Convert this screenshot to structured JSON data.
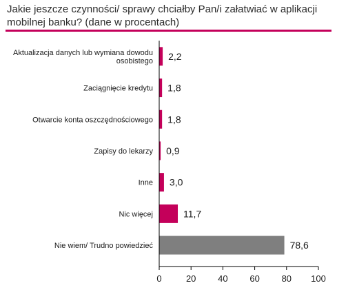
{
  "title": "Jakie jeszcze czynności/ sprawy chciałby Pan/i załatwiać  w aplikacji mobilnej banku? (dane w procentach)",
  "colors": {
    "accent": "#c4005a",
    "neutral": "#7f7f7f",
    "axis": "#000000"
  },
  "chart_data": {
    "type": "bar",
    "orientation": "horizontal",
    "categories": [
      "Aktualizacja danych lub wymiana dowodu osobistego",
      "Zaciągnięcie kredytu",
      "Otwarcie konta oszczędnościowego",
      "Zapisy do lekarzy",
      "Inne",
      "Nic więcej",
      "Nie wiem/ Trudno powiedzieć"
    ],
    "values": [
      2.2,
      1.8,
      1.8,
      0.9,
      3.0,
      11.7,
      78.6
    ],
    "value_labels": [
      "2,2",
      "1,8",
      "1,8",
      "0,9",
      "3,0",
      "11,7",
      "78,6"
    ],
    "bar_colors": [
      "#c4005a",
      "#c4005a",
      "#c4005a",
      "#c4005a",
      "#c4005a",
      "#c4005a",
      "#7f7f7f"
    ],
    "xlim": [
      0,
      100
    ],
    "xticks": [
      0,
      20,
      40,
      60,
      80,
      100
    ],
    "xlabel": "",
    "ylabel": "",
    "grid": false,
    "legend": "none"
  }
}
